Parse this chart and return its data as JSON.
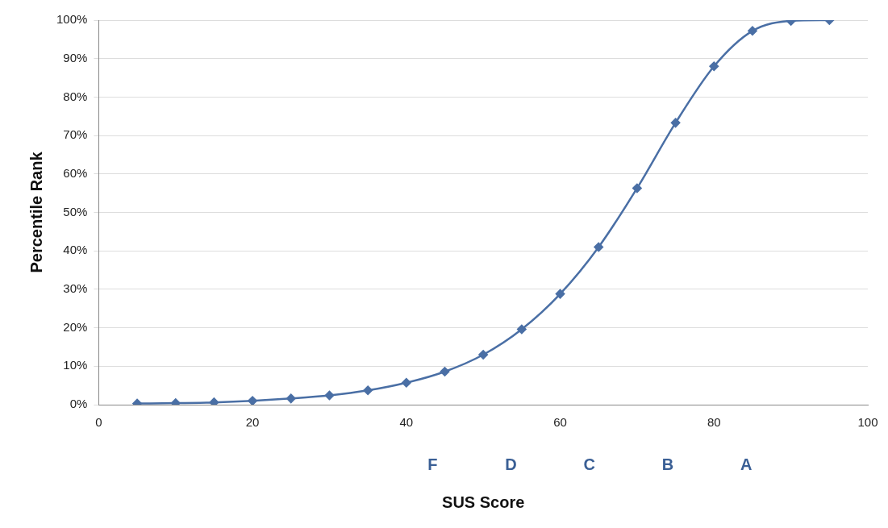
{
  "chart_data": {
    "type": "line",
    "xlabel": "SUS Score",
    "ylabel": "Percentile Rank",
    "x": [
      5,
      10,
      15,
      20,
      25,
      30,
      35,
      40,
      45,
      50,
      55,
      60,
      65,
      70,
      75,
      80,
      85,
      90,
      95
    ],
    "series": [
      {
        "color": "#4a6fa5",
        "values": [
          0.3,
          0.4,
          0.6,
          1.0,
          1.6,
          2.4,
          3.7,
          5.7,
          8.6,
          13,
          19.6,
          28.8,
          41,
          56.3,
          73.3,
          88,
          97.2,
          99.8,
          100
        ]
      }
    ],
    "xlim": [
      0,
      100
    ],
    "xticks": [
      0,
      20,
      40,
      60,
      80,
      100
    ],
    "ylim": [
      0,
      100
    ],
    "yticks": [
      {
        "value": 0,
        "label": "0%"
      },
      {
        "value": 10,
        "label": "10%"
      },
      {
        "value": 20,
        "label": "20%"
      },
      {
        "value": 30,
        "label": "30%"
      },
      {
        "value": 40,
        "label": "40%"
      },
      {
        "value": 50,
        "label": "50%"
      },
      {
        "value": 60,
        "label": "60%"
      },
      {
        "value": 70,
        "label": "70%"
      },
      {
        "value": 80,
        "label": "80%"
      },
      {
        "value": 90,
        "label": "90%"
      },
      {
        "value": 100,
        "label": "100%"
      }
    ],
    "grid": "y",
    "legend": false,
    "marker": "diamond",
    "line_style": "solid",
    "annotations": [
      "F",
      "D",
      "C",
      "B",
      "A"
    ]
  }
}
